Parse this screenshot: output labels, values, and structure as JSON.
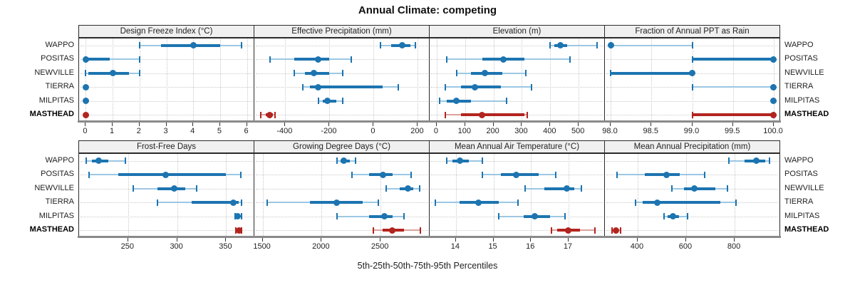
{
  "title": "Annual Climate: competing",
  "xlabel": "5th-25th-50th-75th-95th Percentiles",
  "sites": [
    "WAPPO",
    "POSITAS",
    "NEWVILLE",
    "TIERRA",
    "MILPITAS",
    "MASTHEAD"
  ],
  "highlight_site": "MASTHEAD",
  "percentile_labels": [
    "p5",
    "p25",
    "p50",
    "p75",
    "p95"
  ],
  "colors": {
    "series": "#1c74b0",
    "series_light": "#9cc7e3",
    "highlight": "#b2241f",
    "highlight_light": "#dba39d",
    "header_bg": "#f0f0f0",
    "grid": "#c9c9c9",
    "axis": "#8a8a8a",
    "border": "#2b2b2b"
  },
  "chart_data": [
    {
      "type": "dotplot-percentiles",
      "title": "Design Freeze Index (°C)",
      "xlim": [
        -0.25,
        6.25
      ],
      "tick_values": [
        0,
        1,
        2,
        3,
        4,
        5,
        6
      ],
      "tick_labels": [
        "0",
        "1",
        "2",
        "3",
        "4",
        "5",
        "6"
      ],
      "series": [
        {
          "name": "WAPPO",
          "values": [
            2.0,
            2.8,
            4.0,
            5.0,
            5.8
          ]
        },
        {
          "name": "POSITAS",
          "values": [
            0,
            0,
            0,
            0.9,
            2.0
          ]
        },
        {
          "name": "NEWVILLE",
          "values": [
            0,
            0.1,
            1.0,
            1.6,
            2.0
          ]
        },
        {
          "name": "TIERRA",
          "values": [
            0,
            0,
            0,
            0,
            0
          ]
        },
        {
          "name": "MILPITAS",
          "values": [
            0,
            0,
            0,
            0,
            0
          ]
        },
        {
          "name": "MASTHEAD",
          "values": [
            0,
            0,
            0,
            0,
            0
          ]
        }
      ]
    },
    {
      "type": "dotplot-percentiles",
      "title": "Effective Precipitation (mm)",
      "xlim": [
        -540,
        250
      ],
      "tick_values": [
        -400,
        -200,
        0,
        200
      ],
      "tick_labels": [
        "-400",
        "-200",
        "0",
        "200"
      ],
      "series": [
        {
          "name": "WAPPO",
          "values": [
            30,
            80,
            130,
            165,
            190
          ]
        },
        {
          "name": "POSITAS",
          "values": [
            -470,
            -360,
            -250,
            -200,
            -100
          ]
        },
        {
          "name": "NEWVILLE",
          "values": [
            -360,
            -310,
            -270,
            -200,
            -140
          ]
        },
        {
          "name": "TIERRA",
          "values": [
            -320,
            -290,
            -250,
            40,
            110
          ]
        },
        {
          "name": "MILPITAS",
          "values": [
            -250,
            -230,
            -210,
            -170,
            -140
          ]
        },
        {
          "name": "MASTHEAD",
          "values": [
            -510,
            -490,
            -470,
            -455,
            -445
          ]
        }
      ]
    },
    {
      "type": "dotplot-percentiles",
      "title": "Elevation (m)",
      "xlim": [
        -25,
        590
      ],
      "tick_values": [
        0,
        100,
        200,
        300,
        400,
        500
      ],
      "tick_labels": [
        "0",
        "100",
        "200",
        "300",
        "400",
        "500"
      ],
      "series": [
        {
          "name": "WAPPO",
          "values": [
            400,
            415,
            435,
            460,
            565
          ]
        },
        {
          "name": "POSITAS",
          "values": [
            35,
            160,
            235,
            310,
            470
          ]
        },
        {
          "name": "NEWVILLE",
          "values": [
            70,
            120,
            170,
            230,
            315
          ]
        },
        {
          "name": "TIERRA",
          "values": [
            30,
            85,
            135,
            225,
            335
          ]
        },
        {
          "name": "MILPITAS",
          "values": [
            10,
            35,
            70,
            120,
            245
          ]
        },
        {
          "name": "MASTHEAD",
          "values": [
            30,
            85,
            160,
            310,
            320
          ]
        }
      ]
    },
    {
      "type": "dotplot-percentiles",
      "title": "Fraction of Annual PPT as Rain",
      "xlim": [
        97.93,
        100.07
      ],
      "tick_values": [
        98.0,
        98.5,
        99.0,
        99.5,
        100.0
      ],
      "tick_labels": [
        "98.0",
        "98.5",
        "99.0",
        "99.5",
        "100.0"
      ],
      "series": [
        {
          "name": "WAPPO",
          "values": [
            98.0,
            98.0,
            98.0,
            98.0,
            99.0
          ]
        },
        {
          "name": "POSITAS",
          "values": [
            99.0,
            99.0,
            100.0,
            100.0,
            100.0
          ]
        },
        {
          "name": "NEWVILLE",
          "values": [
            98.0,
            98.0,
            99.0,
            99.0,
            99.0
          ]
        },
        {
          "name": "TIERRA",
          "values": [
            99.0,
            100.0,
            100.0,
            100.0,
            100.0
          ]
        },
        {
          "name": "MILPITAS",
          "values": [
            100.0,
            100.0,
            100.0,
            100.0,
            100.0
          ]
        },
        {
          "name": "MASTHEAD",
          "values": [
            99.0,
            99.0,
            100.0,
            100.0,
            100.0
          ]
        }
      ]
    },
    {
      "type": "dotplot-percentiles",
      "title": "Frost-Free Days",
      "xlim": [
        200,
        378
      ],
      "tick_values": [
        250,
        300,
        350
      ],
      "tick_labels": [
        "250",
        "300",
        "350"
      ],
      "series": [
        {
          "name": "WAPPO",
          "values": [
            207,
            213,
            220,
            230,
            247
          ]
        },
        {
          "name": "POSITAS",
          "values": [
            210,
            240,
            288,
            350,
            365
          ]
        },
        {
          "name": "NEWVILLE",
          "values": [
            255,
            280,
            297,
            308,
            320
          ]
        },
        {
          "name": "TIERRA",
          "values": [
            280,
            315,
            357,
            363,
            366
          ]
        },
        {
          "name": "MILPITAS",
          "values": [
            359,
            361,
            362,
            364,
            366
          ]
        },
        {
          "name": "MASTHEAD",
          "values": [
            360,
            361,
            363,
            364,
            366
          ]
        }
      ]
    },
    {
      "type": "dotplot-percentiles",
      "title": "Growing Degree Days (°C)",
      "xlim": [
        1430,
        2910
      ],
      "tick_values": [
        1500,
        2000,
        2500
      ],
      "tick_labels": [
        "1500",
        "2000",
        "2500"
      ],
      "series": [
        {
          "name": "WAPPO",
          "values": [
            2130,
            2160,
            2190,
            2240,
            2290
          ]
        },
        {
          "name": "POSITAS",
          "values": [
            2260,
            2400,
            2520,
            2600,
            2760
          ]
        },
        {
          "name": "NEWVILLE",
          "values": [
            2550,
            2660,
            2730,
            2780,
            2830
          ]
        },
        {
          "name": "TIERRA",
          "values": [
            1540,
            1900,
            2130,
            2350,
            2480
          ]
        },
        {
          "name": "MILPITAS",
          "values": [
            2130,
            2400,
            2530,
            2600,
            2700
          ]
        },
        {
          "name": "MASTHEAD",
          "values": [
            2440,
            2520,
            2600,
            2700,
            2840
          ]
        }
      ]
    },
    {
      "type": "dotplot-percentiles",
      "title": "Mean Annual Air Temperature (°C)",
      "xlim": [
        13.3,
        17.95
      ],
      "tick_values": [
        14,
        15,
        16,
        17
      ],
      "tick_labels": [
        "14",
        "15",
        "16",
        "17"
      ],
      "series": [
        {
          "name": "WAPPO",
          "values": [
            13.75,
            13.9,
            14.1,
            14.35,
            14.7
          ]
        },
        {
          "name": "POSITAS",
          "values": [
            14.7,
            15.2,
            15.6,
            16.2,
            16.65
          ]
        },
        {
          "name": "NEWVILLE",
          "values": [
            15.85,
            16.35,
            16.95,
            17.15,
            17.35
          ]
        },
        {
          "name": "TIERRA",
          "values": [
            13.45,
            14.1,
            14.6,
            15.15,
            15.65
          ]
        },
        {
          "name": "MILPITAS",
          "values": [
            15.15,
            15.8,
            16.1,
            16.5,
            16.9
          ]
        },
        {
          "name": "MASTHEAD",
          "values": [
            16.55,
            16.7,
            17.0,
            17.3,
            17.7
          ]
        }
      ]
    },
    {
      "type": "dotplot-percentiles",
      "title": "Mean Annual Precipitation (mm)",
      "xlim": [
        265,
        985
      ],
      "tick_values": [
        400,
        600,
        800
      ],
      "tick_labels": [
        "400",
        "600",
        "800"
      ],
      "series": [
        {
          "name": "WAPPO",
          "values": [
            775,
            840,
            890,
            925,
            945
          ]
        },
        {
          "name": "POSITAS",
          "values": [
            315,
            430,
            520,
            575,
            675
          ]
        },
        {
          "name": "NEWVILLE",
          "values": [
            540,
            590,
            635,
            720,
            770
          ]
        },
        {
          "name": "TIERRA",
          "values": [
            390,
            420,
            480,
            740,
            805
          ]
        },
        {
          "name": "MILPITAS",
          "values": [
            510,
            525,
            545,
            570,
            605
          ]
        },
        {
          "name": "MASTHEAD",
          "values": [
            295,
            300,
            310,
            320,
            330
          ]
        }
      ]
    }
  ]
}
